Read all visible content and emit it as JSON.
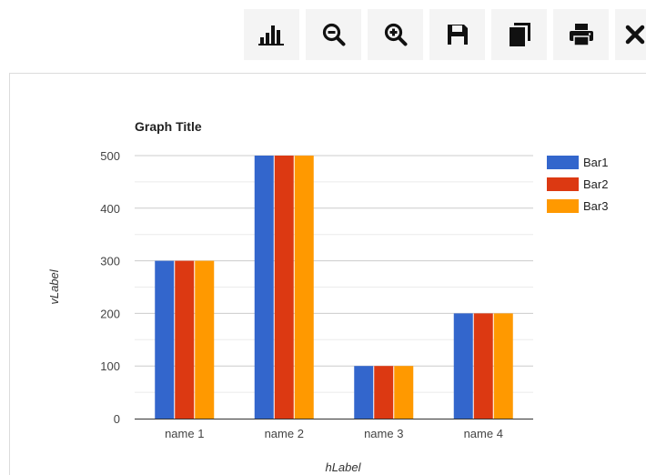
{
  "toolbar": {
    "buttons": [
      {
        "icon": "bar-chart-icon"
      },
      {
        "icon": "zoom-out-icon"
      },
      {
        "icon": "zoom-in-icon"
      },
      {
        "icon": "save-icon"
      },
      {
        "icon": "copy-icon"
      },
      {
        "icon": "print-icon"
      },
      {
        "icon": "close-icon"
      }
    ]
  },
  "chart_data": {
    "type": "bar",
    "title": "Graph Title",
    "xlabel": "hLabel",
    "ylabel": "vLabel",
    "categories": [
      "name 1",
      "name 2",
      "name 3",
      "name 4"
    ],
    "series": [
      {
        "name": "Bar1",
        "color": "#3366cc",
        "values": [
          300,
          500,
          100,
          200
        ]
      },
      {
        "name": "Bar2",
        "color": "#dc3912",
        "values": [
          300,
          500,
          100,
          200
        ]
      },
      {
        "name": "Bar3",
        "color": "#ff9900",
        "values": [
          300,
          500,
          100,
          200
        ]
      }
    ],
    "ylim": [
      0,
      500
    ],
    "yticks": [
      "0",
      "100",
      "200",
      "300",
      "400",
      "500"
    ],
    "grid": true,
    "legend_position": "right"
  }
}
